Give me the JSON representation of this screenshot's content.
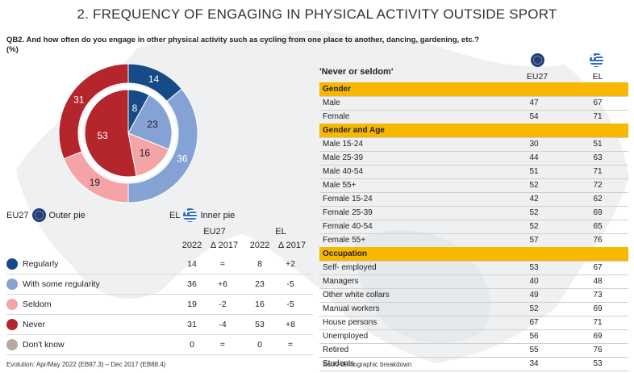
{
  "title": "2. FREQUENCY OF ENGAGING IN PHYSICAL ACTIVITY OUTSIDE SPORT",
  "question": "QB2. And how often do you engage in other physical activity such as cycling from one place to another, dancing, gardening, etc.?",
  "unit": "(%)",
  "colors": {
    "regularly": "#164b87",
    "some_regularity": "#84a3d4",
    "seldom": "#f4a3a7",
    "never": "#b5252c",
    "dont_know": "#b9a9a3",
    "section": "#f9b800"
  },
  "pie_legend": {
    "eu_label": "EU27",
    "eu_text": "Outer pie",
    "el_label": "EL",
    "el_text": "Inner pie"
  },
  "left_table": {
    "eu_header": "EU27",
    "el_header": "EL",
    "year": "2022",
    "delta": "Δ 2017",
    "rows": [
      {
        "label": "Regularly",
        "eu": "14",
        "eu_d": "=",
        "el": "8",
        "el_d": "+2"
      },
      {
        "label": "With some regularity",
        "eu": "36",
        "eu_d": "+6",
        "el": "23",
        "el_d": "-5"
      },
      {
        "label": "Seldom",
        "eu": "19",
        "eu_d": "-2",
        "el": "16",
        "el_d": "-5"
      },
      {
        "label": "Never",
        "eu": "31",
        "eu_d": "-4",
        "el": "53",
        "el_d": "+8"
      },
      {
        "label": "Don't know",
        "eu": "0",
        "eu_d": "=",
        "el": "0",
        "el_d": "="
      }
    ]
  },
  "right_table": {
    "title": "'Never or seldom'",
    "col1": "EU27",
    "col2": "EL",
    "rows": [
      {
        "section": true,
        "label": "Gender"
      },
      {
        "label": "Male",
        "eu": "47",
        "el": "67"
      },
      {
        "label": "Female",
        "eu": "54",
        "el": "71"
      },
      {
        "section": true,
        "label": "Gender and Age"
      },
      {
        "label": "Male 15-24",
        "eu": "30",
        "el": "51"
      },
      {
        "label": "Male 25-39",
        "eu": "44",
        "el": "63"
      },
      {
        "label": "Male 40-54",
        "eu": "51",
        "el": "71"
      },
      {
        "label": "Male 55+",
        "eu": "52",
        "el": "72"
      },
      {
        "label": "Female 15-24",
        "eu": "42",
        "el": "62"
      },
      {
        "label": "Female 25-39",
        "eu": "52",
        "el": "69"
      },
      {
        "label": "Female 40-54",
        "eu": "52",
        "el": "65"
      },
      {
        "label": "Female 55+",
        "eu": "57",
        "el": "76"
      },
      {
        "section": true,
        "label": "Occupation"
      },
      {
        "label": "Self- employed",
        "eu": "53",
        "el": "67"
      },
      {
        "label": "Managers",
        "eu": "40",
        "el": "48"
      },
      {
        "label": "Other white collars",
        "eu": "49",
        "el": "73"
      },
      {
        "label": "Manual workers",
        "eu": "52",
        "el": "69"
      },
      {
        "label": "House persons",
        "eu": "67",
        "el": "71"
      },
      {
        "label": "Unemployed",
        "eu": "56",
        "el": "69"
      },
      {
        "label": "Retired",
        "eu": "55",
        "el": "76"
      },
      {
        "label": "Students",
        "eu": "34",
        "el": "53"
      }
    ]
  },
  "footer_left": "Evolution: Apr/May 2022 (EB97.3) – Dec 2017 (EB88.4)",
  "footer_right": "Socio-demographic breakdown",
  "chart_data": {
    "type": "pie",
    "title": "",
    "categories": [
      "Regularly",
      "With some regularity",
      "Seldom",
      "Never"
    ],
    "series": [
      {
        "name": "EU27",
        "values": [
          14,
          36,
          19,
          31
        ]
      },
      {
        "name": "EL",
        "values": [
          8,
          23,
          16,
          53
        ]
      }
    ]
  }
}
